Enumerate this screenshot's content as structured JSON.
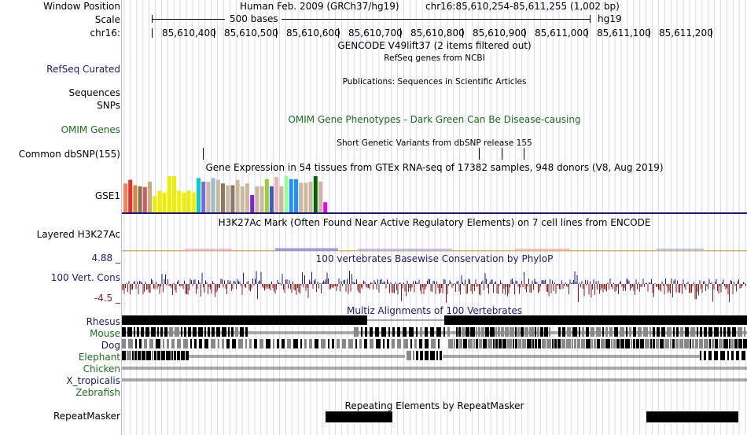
{
  "header": {
    "window_position_label": "Window Position",
    "scale_label": "Scale",
    "chrom_label": "chr16:",
    "assembly_title": "Human Feb. 2009 (GRCh37/hg19)",
    "position": "chr16:85,610,254-85,611,255 (1,002 bp)",
    "scale_text": "500 bases",
    "db_text": "hg19",
    "ticks": [
      "85,610,400",
      "85,610,500",
      "85,610,600",
      "85,610,700",
      "85,610,800",
      "85,610,900",
      "85,611,000",
      "85,611,100",
      "85,611,200"
    ]
  },
  "tracks": {
    "gencode": {
      "title": "GENCODE V49lift37 (2 items filtered out)"
    },
    "refseq": {
      "label": "RefSeq Curated",
      "title": "RefSeq genes from NCBI"
    },
    "publications": {
      "title": "Publications: Sequences in Scientific Articles"
    },
    "sequences": {
      "label": "Sequences"
    },
    "snps": {
      "label": "SNPs"
    },
    "omim": {
      "label": "OMIM Genes",
      "title": "OMIM Gene Phenotypes - Dark Green Can Be Disease-causing"
    },
    "dbsnp": {
      "label": "Common dbSNP(155)",
      "title": "Short Genetic Variants from dbSNP release 155"
    },
    "gtex": {
      "label": "GSE1",
      "title": "Gene Expression in 54 tissues from GTEx RNA-seq of 17382 samples, 948 donors (V8, Aug 2019)",
      "bars": [
        {
          "color": "#ff7f50",
          "level": 0.8
        },
        {
          "color": "#ee2c2c",
          "level": 0.9
        },
        {
          "color": "#cd8c3c",
          "level": 0.75
        },
        {
          "color": "#8b7355",
          "level": 0.72
        },
        {
          "color": "#cd5c5c",
          "level": 0.7
        },
        {
          "color": "#cdaa7d",
          "level": 0.85
        },
        {
          "color": "#eeee00",
          "level": 0.45
        },
        {
          "color": "#eeee00",
          "level": 0.6
        },
        {
          "color": "#eeee00",
          "level": 0.55
        },
        {
          "color": "#eeee00",
          "level": 1.0
        },
        {
          "color": "#eeee00",
          "level": 1.0
        },
        {
          "color": "#eeee00",
          "level": 0.6
        },
        {
          "color": "#eeee00",
          "level": 0.55
        },
        {
          "color": "#eeee00",
          "level": 0.6
        },
        {
          "color": "#eeee00",
          "level": 0.55
        },
        {
          "color": "#00cdcd",
          "level": 0.95
        },
        {
          "color": "#7a67ee",
          "level": 0.85
        },
        {
          "color": "#cdb79e",
          "level": 0.85
        },
        {
          "color": "#9ac0cd",
          "level": 0.95
        },
        {
          "color": "#cdb79e",
          "level": 0.9
        },
        {
          "color": "#8b795e",
          "level": 0.8
        },
        {
          "color": "#cdb79e",
          "level": 0.75
        },
        {
          "color": "#8b7765",
          "level": 0.75
        },
        {
          "color": "#cdb79e",
          "level": 0.9
        },
        {
          "color": "#cdb79e",
          "level": 0.72
        },
        {
          "color": "#cdb79e",
          "level": 0.8
        },
        {
          "color": "#7d26cd",
          "level": 0.48
        },
        {
          "color": "#cdb79e",
          "level": 0.72
        },
        {
          "color": "#cdb79e",
          "level": 0.72
        },
        {
          "color": "#9acd32",
          "level": 0.92
        },
        {
          "color": "#3a5fcd",
          "level": 0.72
        },
        {
          "color": "#eeb4b4",
          "level": 0.98
        },
        {
          "color": "#cdb79e",
          "level": 0.72
        },
        {
          "color": "#98fb98",
          "level": 1.0
        },
        {
          "color": "#1e90ff",
          "level": 0.92
        },
        {
          "color": "#1e90ff",
          "level": 0.92
        },
        {
          "color": "#cdb79e",
          "level": 0.82
        },
        {
          "color": "#cdb79e",
          "level": 0.82
        },
        {
          "color": "#cdb79e",
          "level": 0.85
        },
        {
          "color": "#006400",
          "level": 1.0
        },
        {
          "color": "#cdb79e",
          "level": 0.85
        },
        {
          "color": "#ee00ee",
          "level": 0.28
        }
      ]
    },
    "h3k27ac": {
      "label": "Layered H3K27Ac",
      "title": "H3K27Ac Mark (Often Found Near Active Regulatory Elements) on 7 cell lines from ENCODE"
    },
    "conservation": {
      "label": "100 Vert. Cons",
      "max": "4.88 _",
      "min": "-4.5 _",
      "title": "100 vertebrates Basewise Conservation by PhyloP"
    },
    "multiz": {
      "title": "Multiz Alignments of 100 Vertebrates",
      "species": [
        "Rhesus",
        "Mouse",
        "Dog",
        "Elephant",
        "Chicken",
        "X_tropicalis",
        "Zebrafish"
      ],
      "colors": {
        "primate": "#1a1a6e",
        "mammal": "#1a6e1a",
        "other": "#1a6e1a"
      }
    },
    "repeatmasker": {
      "label": "RepeatMasker",
      "title": "Repeating Elements by RepeatMasker"
    }
  }
}
